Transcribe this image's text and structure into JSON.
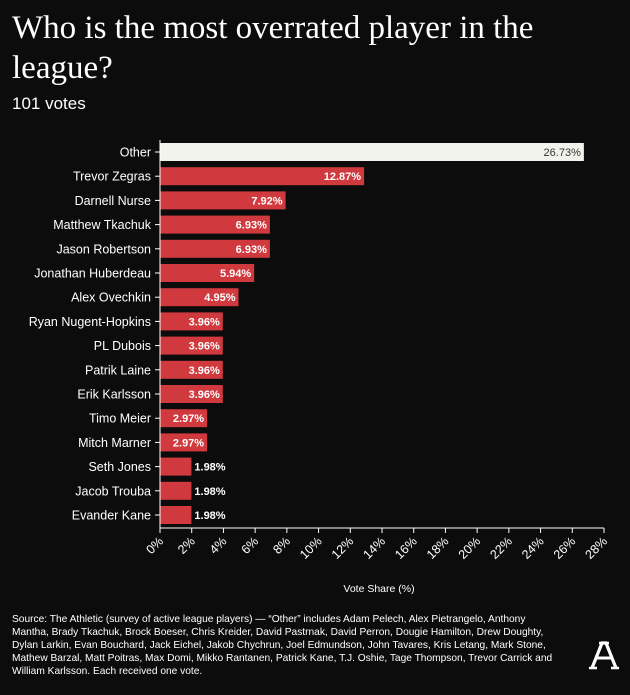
{
  "title": "Who is the most overrated player in the league?",
  "subtitle": "101 votes",
  "source": "Source: The Athletic (survey of active league players) — “Other” includes Adam Pelech, Alex Pietrangelo, Anthony Mantha, Brady Tkachuk, Brock Boeser, Chris Kreider, David Pastrnak, David Perron, Dougie Hamilton, Drew Doughty, Dylan Larkin, Evan Bouchard, Jack Eichel, Jakob Chychrun, Joel Edmundson, John Tavares, Kris Letang, Mark Stone, Mathew Barzal, Matt Poitras, Max Domi, Mikko Rantanen, Patrick Kane, T.J. Oshie, Tage Thompson, Trevor Carrick and William Karlsson. Each received one vote.",
  "logo_icon": "athletic-a-logo-icon",
  "chart_data": {
    "type": "bar",
    "orientation": "horizontal",
    "categories": [
      "Other",
      "Trevor Zegras",
      "Darnell Nurse",
      "Matthew Tkachuk",
      "Jason Robertson",
      "Jonathan Huberdeau",
      "Alex Ovechkin",
      "Ryan Nugent-Hopkins",
      "PL Dubois",
      "Patrik Laine",
      "Erik Karlsson",
      "Timo Meier",
      "Mitch Marner",
      "Seth Jones",
      "Jacob Trouba",
      "Evander Kane"
    ],
    "values": [
      26.73,
      12.87,
      7.92,
      6.93,
      6.93,
      5.94,
      4.95,
      3.96,
      3.96,
      3.96,
      3.96,
      2.97,
      2.97,
      1.98,
      1.98,
      1.98
    ],
    "data_labels": [
      "26.73%",
      "12.87%",
      "7.92%",
      "6.93%",
      "6.93%",
      "5.94%",
      "4.95%",
      "3.96%",
      "3.96%",
      "3.96%",
      "3.96%",
      "2.97%",
      "2.97%",
      "1.98%",
      "1.98%",
      "1.98%"
    ],
    "xlabel": "Vote Share (%)",
    "ylabel": "",
    "xlim": [
      0,
      28
    ],
    "x_ticks": [
      0,
      2,
      4,
      6,
      8,
      10,
      12,
      14,
      16,
      18,
      20,
      22,
      24,
      26,
      28
    ],
    "x_tick_labels": [
      "0%",
      "2%",
      "4%",
      "6%",
      "8%",
      "10%",
      "12%",
      "14%",
      "16%",
      "18%",
      "20%",
      "22%",
      "24%",
      "26%",
      "28%"
    ],
    "grid": false,
    "colors": {
      "highlight": "#f3f3ee",
      "bar": "#d0393e",
      "background": "#0c0c0c",
      "text": "#ffffff",
      "highlight_label": "#333333"
    }
  }
}
